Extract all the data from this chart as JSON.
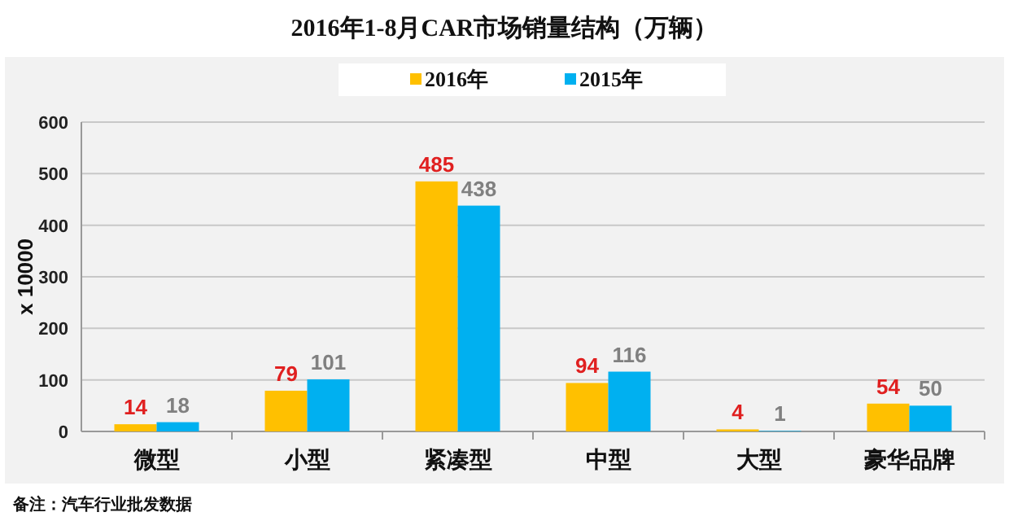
{
  "chart_data": {
    "type": "bar",
    "title": "2016年1-8月CAR市场销量结构（万辆）",
    "ylabel": "x 10000",
    "categories": [
      "微型",
      "小型",
      "紧凑型",
      "中型",
      "大型",
      "豪华品牌"
    ],
    "series": [
      {
        "name": "2016年",
        "color": "#ffc000",
        "values": [
          14,
          79,
          485,
          94,
          4,
          54
        ]
      },
      {
        "name": "2015年",
        "color": "#00b0f0",
        "values": [
          18,
          101,
          438,
          116,
          1,
          50
        ]
      }
    ],
    "ylim": [
      0,
      600
    ],
    "yticks": [
      0,
      100,
      200,
      300,
      400,
      500,
      600
    ],
    "grid": "y",
    "legend": "top",
    "data_labels": true,
    "annotations": [
      "备注：汽车行业批发数据"
    ]
  }
}
